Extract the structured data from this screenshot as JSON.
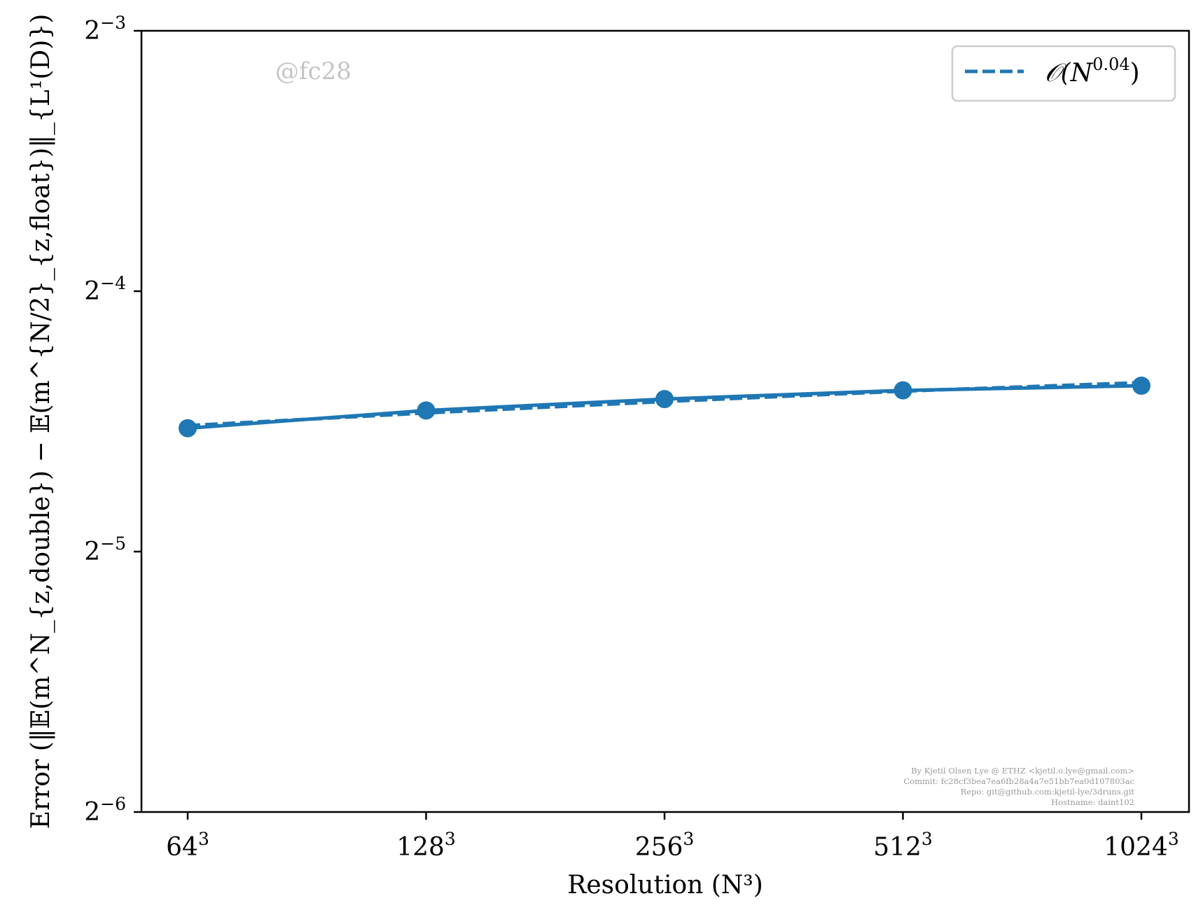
{
  "chart_data": {
    "type": "line",
    "x": [
      "64^3",
      "128^3",
      "256^3",
      "512^3",
      "1024^3"
    ],
    "x_tick_labels": [
      {
        "base": "64",
        "exp": "3"
      },
      {
        "base": "128",
        "exp": "3"
      },
      {
        "base": "256",
        "exp": "3"
      },
      {
        "base": "512",
        "exp": "3"
      },
      {
        "base": "1024",
        "exp": "3"
      }
    ],
    "x_values": [
      64,
      128,
      256,
      512,
      1024
    ],
    "x_scale": "log2",
    "y_scale": "log2",
    "ylim": [
      0.015625,
      0.125
    ],
    "y_ticks": [
      0.015625,
      0.03125,
      0.0625,
      0.125
    ],
    "y_tick_labels": [
      {
        "base": "2",
        "exp": "−6"
      },
      {
        "base": "2",
        "exp": "−5"
      },
      {
        "base": "2",
        "exp": "−4"
      },
      {
        "base": "2",
        "exp": "−3"
      }
    ],
    "xlabel": "Resolution (N³)",
    "ylabel": "Error (‖𝔼(m^N_{z,double}) − 𝔼(m^{N/2}_{z,float})‖_{L¹(D)})",
    "series": [
      {
        "values": [
          0.0434,
          0.0455,
          0.0469,
          0.048,
          0.0486
        ],
        "color": "#1f77b4",
        "style": "solid",
        "marker": "circle"
      },
      {
        "name": "𝒪(N^{0.04})",
        "values": [
          0.0437,
          0.0452,
          0.0466,
          0.0479,
          0.049
        ],
        "color": "#1f77b4",
        "style": "dashed"
      }
    ],
    "legend": {
      "placement": "top-right",
      "entry": {
        "prefix": "𝒪(N",
        "exp": "0.04",
        "suffix": ")"
      }
    },
    "grid": false,
    "watermark": "@fc28",
    "credits": [
      "By Kjetil Olsen Lye @ ETHZ <kjetil.o.lye@gmail.com>",
      "Commit: fc28cf3bea7ea6fb28a4a7e51bb7ea0d107803ac",
      "Repo: git@github.com:kjetil-lye/3druns.git",
      "Hostname: daint102"
    ]
  }
}
